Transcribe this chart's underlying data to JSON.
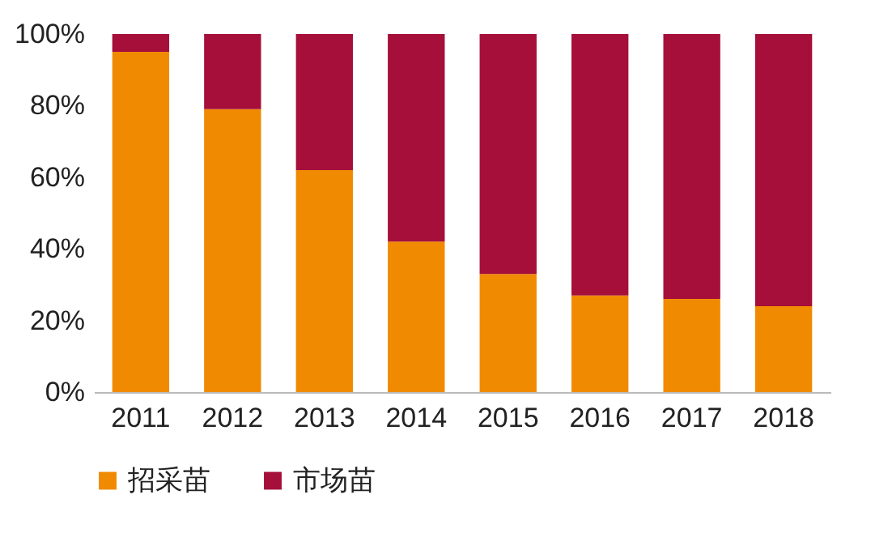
{
  "chart_data": {
    "type": "bar",
    "stacked": true,
    "categories": [
      "2011",
      "2012",
      "2013",
      "2014",
      "2015",
      "2016",
      "2017",
      "2018"
    ],
    "series": [
      {
        "name": "招采苗",
        "color": "#f08a00",
        "values": [
          95,
          79,
          62,
          42,
          33,
          27,
          26,
          24
        ]
      },
      {
        "name": "市场苗",
        "color": "#a50f3a",
        "values": [
          5,
          21,
          38,
          58,
          67,
          73,
          74,
          76
        ]
      }
    ],
    "ylim": [
      0,
      100
    ],
    "yticks": [
      {
        "value": 0,
        "label": "0%"
      },
      {
        "value": 20,
        "label": "20%"
      },
      {
        "value": 40,
        "label": "40%"
      },
      {
        "value": 60,
        "label": "60%"
      },
      {
        "value": 80,
        "label": "80%"
      },
      {
        "value": 100,
        "label": "100%"
      }
    ],
    "grid": false,
    "legend": "bottom"
  }
}
